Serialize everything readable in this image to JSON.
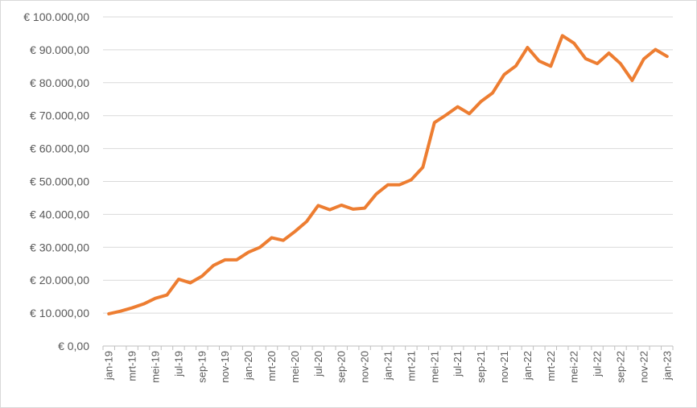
{
  "chart_data": {
    "type": "line",
    "title": "",
    "xlabel": "",
    "ylabel": "",
    "ylim": [
      0,
      100000
    ],
    "yticks": [
      0,
      10000,
      20000,
      30000,
      40000,
      50000,
      60000,
      70000,
      80000,
      90000,
      100000
    ],
    "ytick_labels": [
      "€ 0,00",
      "€ 10.000,00",
      "€ 20.000,00",
      "€ 30.000,00",
      "€ 40.000,00",
      "€ 50.000,00",
      "€ 60.000,00",
      "€ 70.000,00",
      "€ 80.000,00",
      "€ 90.000,00",
      "€ 100.000,00"
    ],
    "grid": "horizontal",
    "legend": "none",
    "x_tick_labels": [
      "jan-19",
      "mrt-19",
      "mei-19",
      "jul-19",
      "sep-19",
      "nov-19",
      "jan-20",
      "mrt-20",
      "mei-20",
      "jul-20",
      "sep-20",
      "nov-20",
      "jan-21",
      "mrt-21",
      "mei-21",
      "jul-21",
      "sep-21",
      "nov-21",
      "jan-22",
      "mrt-22",
      "mei-22",
      "jul-22",
      "sep-22",
      "nov-22",
      "jan-23"
    ],
    "categories": [
      "jan-19",
      "feb-19",
      "mrt-19",
      "apr-19",
      "mei-19",
      "jun-19",
      "jul-19",
      "aug-19",
      "sep-19",
      "okt-19",
      "nov-19",
      "dec-19",
      "jan-20",
      "feb-20",
      "mrt-20",
      "apr-20",
      "mei-20",
      "jun-20",
      "jul-20",
      "aug-20",
      "sep-20",
      "okt-20",
      "nov-20",
      "dec-20",
      "jan-21",
      "feb-21",
      "mrt-21",
      "apr-21",
      "mei-21",
      "jun-21",
      "jul-21",
      "aug-21",
      "sep-21",
      "okt-21",
      "nov-21",
      "dec-21",
      "jan-22",
      "feb-22",
      "mrt-22",
      "apr-22",
      "mei-22",
      "jun-22",
      "jul-22",
      "aug-22",
      "sep-22",
      "okt-22",
      "nov-22",
      "dec-22",
      "jan-23"
    ],
    "series": [
      {
        "color": "#ED7D31",
        "values": [
          9800,
          10600,
          11600,
          12800,
          14500,
          15500,
          20300,
          19200,
          21200,
          24500,
          26200,
          26200,
          28500,
          30000,
          32900,
          32100,
          34800,
          37800,
          42700,
          41400,
          42800,
          41600,
          41900,
          46200,
          49000,
          49000,
          50500,
          54300,
          67900,
          70200,
          72700,
          70600,
          74300,
          76900,
          82500,
          85100,
          90700,
          86600,
          85000,
          94300,
          92000,
          87300,
          85800,
          89000,
          85800,
          80700,
          87200,
          90100,
          88000
        ]
      }
    ]
  }
}
